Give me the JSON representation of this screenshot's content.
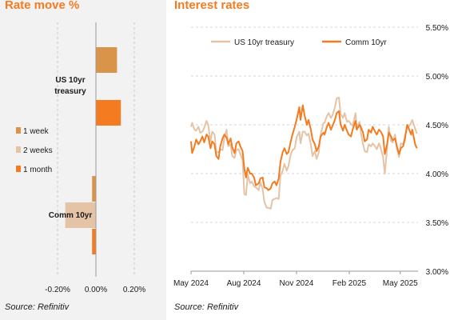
{
  "left": {
    "title": "Rate move %",
    "source": "Source: Refinitiv"
  },
  "right": {
    "title": "Interest rates",
    "source": "Source: Refinitiv"
  },
  "chart_data": [
    {
      "type": "bar",
      "orientation": "horizontal",
      "categories": [
        "US 10yr treasury",
        "Comm 10yr"
      ],
      "category_labels": [
        [
          "US 10yr",
          "treasury"
        ],
        [
          "Comm 10yr"
        ]
      ],
      "series": [
        {
          "name": "1 week",
          "color": "#d9944a",
          "values": [
            0.11,
            -0.02
          ]
        },
        {
          "name": "2 weeks",
          "color": "#e5c3a6",
          "values": [
            0.0,
            -0.16
          ]
        },
        {
          "name": "1 month",
          "color": "#f47b20",
          "values": [
            0.13,
            -0.02
          ]
        }
      ],
      "x_ticks": [
        "-0.20%",
        "0.00%",
        "0.20%"
      ],
      "x_tick_values": [
        -0.2,
        0.0,
        0.2
      ],
      "xlim": [
        -0.26,
        0.25
      ],
      "grid": "vertical dashed"
    },
    {
      "type": "line",
      "y_ticks": [
        "3.00%",
        "3.50%",
        "4.00%",
        "4.50%",
        "5.00%",
        "5.50%"
      ],
      "y_tick_values": [
        3.0,
        3.5,
        4.0,
        4.5,
        5.0,
        5.5
      ],
      "ylim": [
        3.0,
        5.5
      ],
      "x_ticks": [
        "May 2024",
        "Aug 2024",
        "Nov 2024",
        "Feb 2025",
        "May 2025"
      ],
      "x_tick_dates": [
        "2024-05-01",
        "2024-08-01",
        "2024-11-01",
        "2025-02-01",
        "2025-05-01"
      ],
      "x_start": "2024-05-01",
      "x_end": "2025-06-01",
      "grid": "horizontal dashed",
      "legend": "top-center",
      "series": [
        {
          "name": "US 10yr treasury",
          "color": "#e5c3a6",
          "points": [
            [
              "2024-05-01",
              4.48
            ],
            [
              "2024-05-03",
              4.52
            ],
            [
              "2024-05-07",
              4.45
            ],
            [
              "2024-05-10",
              4.44
            ],
            [
              "2024-05-14",
              4.48
            ],
            [
              "2024-05-17",
              4.42
            ],
            [
              "2024-05-21",
              4.43
            ],
            [
              "2024-05-24",
              4.47
            ],
            [
              "2024-05-28",
              4.54
            ],
            [
              "2024-05-31",
              4.5
            ],
            [
              "2024-06-04",
              4.33
            ],
            [
              "2024-06-07",
              4.43
            ],
            [
              "2024-06-11",
              4.4
            ],
            [
              "2024-06-14",
              4.22
            ],
            [
              "2024-06-18",
              4.22
            ],
            [
              "2024-06-21",
              4.25
            ],
            [
              "2024-06-25",
              4.24
            ],
            [
              "2024-06-28",
              4.36
            ],
            [
              "2024-07-02",
              4.45
            ],
            [
              "2024-07-05",
              4.28
            ],
            [
              "2024-07-09",
              4.3
            ],
            [
              "2024-07-12",
              4.18
            ],
            [
              "2024-07-16",
              4.16
            ],
            [
              "2024-07-19",
              4.24
            ],
            [
              "2024-07-23",
              4.25
            ],
            [
              "2024-07-26",
              4.2
            ],
            [
              "2024-07-30",
              4.14
            ],
            [
              "2024-08-02",
              3.79
            ],
            [
              "2024-08-05",
              3.78
            ],
            [
              "2024-08-08",
              3.99
            ],
            [
              "2024-08-12",
              3.9
            ],
            [
              "2024-08-15",
              3.92
            ],
            [
              "2024-08-19",
              3.87
            ],
            [
              "2024-08-22",
              3.86
            ],
            [
              "2024-08-27",
              3.83
            ],
            [
              "2024-08-30",
              3.91
            ],
            [
              "2024-09-03",
              3.84
            ],
            [
              "2024-09-06",
              3.71
            ],
            [
              "2024-09-10",
              3.65
            ],
            [
              "2024-09-13",
              3.65
            ],
            [
              "2024-09-17",
              3.64
            ],
            [
              "2024-09-20",
              3.73
            ],
            [
              "2024-09-24",
              3.74
            ],
            [
              "2024-09-27",
              3.75
            ],
            [
              "2024-10-01",
              3.74
            ],
            [
              "2024-10-04",
              3.98
            ],
            [
              "2024-10-08",
              4.03
            ],
            [
              "2024-10-11",
              4.1
            ],
            [
              "2024-10-15",
              4.03
            ],
            [
              "2024-10-18",
              4.08
            ],
            [
              "2024-10-22",
              4.2
            ],
            [
              "2024-10-25",
              4.24
            ],
            [
              "2024-10-29",
              4.26
            ],
            [
              "2024-11-01",
              4.37
            ],
            [
              "2024-11-06",
              4.43
            ],
            [
              "2024-11-08",
              4.31
            ],
            [
              "2024-11-12",
              4.43
            ],
            [
              "2024-11-15",
              4.43
            ],
            [
              "2024-11-19",
              4.39
            ],
            [
              "2024-11-22",
              4.41
            ],
            [
              "2024-11-26",
              4.3
            ],
            [
              "2024-11-29",
              4.18
            ],
            [
              "2024-12-03",
              4.23
            ],
            [
              "2024-12-06",
              4.15
            ],
            [
              "2024-12-10",
              4.22
            ],
            [
              "2024-12-13",
              4.4
            ],
            [
              "2024-12-18",
              4.52
            ],
            [
              "2024-12-20",
              4.52
            ],
            [
              "2024-12-24",
              4.59
            ],
            [
              "2024-12-27",
              4.62
            ],
            [
              "2024-12-31",
              4.57
            ],
            [
              "2025-01-03",
              4.6
            ],
            [
              "2025-01-07",
              4.68
            ],
            [
              "2025-01-10",
              4.77
            ],
            [
              "2025-01-14",
              4.78
            ],
            [
              "2025-01-17",
              4.61
            ],
            [
              "2025-01-21",
              4.57
            ],
            [
              "2025-01-24",
              4.62
            ],
            [
              "2025-01-28",
              4.53
            ],
            [
              "2025-01-31",
              4.54
            ],
            [
              "2025-02-04",
              4.51
            ],
            [
              "2025-02-07",
              4.49
            ],
            [
              "2025-02-12",
              4.62
            ],
            [
              "2025-02-14",
              4.47
            ],
            [
              "2025-02-19",
              4.53
            ],
            [
              "2025-02-21",
              4.43
            ],
            [
              "2025-02-25",
              4.3
            ],
            [
              "2025-02-28",
              4.23
            ],
            [
              "2025-03-04",
              4.22
            ],
            [
              "2025-03-07",
              4.3
            ],
            [
              "2025-03-11",
              4.28
            ],
            [
              "2025-03-14",
              4.31
            ],
            [
              "2025-03-18",
              4.28
            ],
            [
              "2025-03-21",
              4.25
            ],
            [
              "2025-03-25",
              4.31
            ],
            [
              "2025-03-28",
              4.26
            ],
            [
              "2025-04-01",
              4.17
            ],
            [
              "2025-04-04",
              4.0
            ],
            [
              "2025-04-08",
              4.26
            ],
            [
              "2025-04-11",
              4.48
            ],
            [
              "2025-04-15",
              4.33
            ],
            [
              "2025-04-18",
              4.32
            ],
            [
              "2025-04-22",
              4.4
            ],
            [
              "2025-04-25",
              4.26
            ],
            [
              "2025-04-29",
              4.17
            ],
            [
              "2025-05-02",
              4.31
            ],
            [
              "2025-05-06",
              4.3
            ],
            [
              "2025-05-09",
              4.38
            ],
            [
              "2025-05-13",
              4.47
            ],
            [
              "2025-05-16",
              4.48
            ],
            [
              "2025-05-20",
              4.52
            ],
            [
              "2025-05-22",
              4.55
            ],
            [
              "2025-05-27",
              4.46
            ],
            [
              "2025-05-30",
              4.41
            ]
          ]
        },
        {
          "name": "Comm 10yr",
          "color": "#f47b20",
          "points": [
            [
              "2024-05-01",
              4.33
            ],
            [
              "2024-05-03",
              4.21
            ],
            [
              "2024-05-07",
              4.28
            ],
            [
              "2024-05-10",
              4.35
            ],
            [
              "2024-05-14",
              4.3
            ],
            [
              "2024-05-17",
              4.33
            ],
            [
              "2024-05-21",
              4.38
            ],
            [
              "2024-05-24",
              4.32
            ],
            [
              "2024-05-28",
              4.4
            ],
            [
              "2024-05-31",
              4.38
            ],
            [
              "2024-06-04",
              4.26
            ],
            [
              "2024-06-07",
              4.33
            ],
            [
              "2024-06-11",
              4.3
            ],
            [
              "2024-06-14",
              4.18
            ],
            [
              "2024-06-18",
              4.15
            ],
            [
              "2024-06-21",
              4.28
            ],
            [
              "2024-06-25",
              4.36
            ],
            [
              "2024-06-28",
              4.4
            ],
            [
              "2024-07-02",
              4.37
            ],
            [
              "2024-07-05",
              4.3
            ],
            [
              "2024-07-09",
              4.36
            ],
            [
              "2024-07-12",
              4.27
            ],
            [
              "2024-07-16",
              4.21
            ],
            [
              "2024-07-19",
              4.31
            ],
            [
              "2024-07-23",
              4.33
            ],
            [
              "2024-07-26",
              4.28
            ],
            [
              "2024-07-30",
              4.23
            ],
            [
              "2024-08-02",
              4.05
            ],
            [
              "2024-08-05",
              3.96
            ],
            [
              "2024-08-08",
              4.06
            ],
            [
              "2024-08-12",
              4.0
            ],
            [
              "2024-08-15",
              4.0
            ],
            [
              "2024-08-19",
              3.96
            ],
            [
              "2024-08-22",
              3.88
            ],
            [
              "2024-08-27",
              3.9
            ],
            [
              "2024-08-30",
              3.95
            ],
            [
              "2024-09-03",
              3.96
            ],
            [
              "2024-09-06",
              3.86
            ],
            [
              "2024-09-10",
              3.85
            ],
            [
              "2024-09-13",
              3.83
            ],
            [
              "2024-09-17",
              3.85
            ],
            [
              "2024-09-20",
              3.9
            ],
            [
              "2024-09-24",
              3.92
            ],
            [
              "2024-09-27",
              3.88
            ],
            [
              "2024-10-01",
              3.95
            ],
            [
              "2024-10-04",
              4.12
            ],
            [
              "2024-10-08",
              4.22
            ],
            [
              "2024-10-11",
              4.26
            ],
            [
              "2024-10-15",
              4.2
            ],
            [
              "2024-10-18",
              4.22
            ],
            [
              "2024-10-22",
              4.33
            ],
            [
              "2024-10-25",
              4.4
            ],
            [
              "2024-10-29",
              4.48
            ],
            [
              "2024-11-01",
              4.55
            ],
            [
              "2024-11-06",
              4.68
            ],
            [
              "2024-11-08",
              4.55
            ],
            [
              "2024-11-12",
              4.7
            ],
            [
              "2024-11-15",
              4.6
            ],
            [
              "2024-11-19",
              4.5
            ],
            [
              "2024-11-22",
              4.55
            ],
            [
              "2024-11-26",
              4.45
            ],
            [
              "2024-11-29",
              4.35
            ],
            [
              "2024-12-03",
              4.3
            ],
            [
              "2024-12-06",
              4.23
            ],
            [
              "2024-12-10",
              4.28
            ],
            [
              "2024-12-13",
              4.38
            ],
            [
              "2024-12-18",
              4.42
            ],
            [
              "2024-12-20",
              4.4
            ],
            [
              "2024-12-24",
              4.48
            ],
            [
              "2024-12-27",
              4.52
            ],
            [
              "2024-12-31",
              4.45
            ],
            [
              "2025-01-03",
              4.49
            ],
            [
              "2025-01-07",
              4.55
            ],
            [
              "2025-01-10",
              4.62
            ],
            [
              "2025-01-14",
              4.64
            ],
            [
              "2025-01-17",
              4.5
            ],
            [
              "2025-01-21",
              4.44
            ],
            [
              "2025-01-24",
              4.5
            ],
            [
              "2025-01-28",
              4.44
            ],
            [
              "2025-01-31",
              4.4
            ],
            [
              "2025-02-04",
              4.38
            ],
            [
              "2025-02-07",
              4.45
            ],
            [
              "2025-02-12",
              4.54
            ],
            [
              "2025-02-14",
              4.45
            ],
            [
              "2025-02-19",
              4.5
            ],
            [
              "2025-02-21",
              4.48
            ],
            [
              "2025-02-25",
              4.42
            ],
            [
              "2025-02-28",
              4.33
            ],
            [
              "2025-03-04",
              4.35
            ],
            [
              "2025-03-07",
              4.45
            ],
            [
              "2025-03-11",
              4.42
            ],
            [
              "2025-03-14",
              4.48
            ],
            [
              "2025-03-18",
              4.43
            ],
            [
              "2025-03-21",
              4.4
            ],
            [
              "2025-03-25",
              4.45
            ],
            [
              "2025-03-28",
              4.43
            ],
            [
              "2025-04-01",
              4.38
            ],
            [
              "2025-04-04",
              4.2
            ],
            [
              "2025-04-08",
              4.3
            ],
            [
              "2025-04-11",
              4.42
            ],
            [
              "2025-04-15",
              4.38
            ],
            [
              "2025-04-18",
              4.34
            ],
            [
              "2025-04-22",
              4.36
            ],
            [
              "2025-04-25",
              4.28
            ],
            [
              "2025-04-29",
              4.2
            ],
            [
              "2025-05-02",
              4.26
            ],
            [
              "2025-05-06",
              4.28
            ],
            [
              "2025-05-09",
              4.35
            ],
            [
              "2025-05-13",
              4.5
            ],
            [
              "2025-05-16",
              4.46
            ],
            [
              "2025-05-20",
              4.4
            ],
            [
              "2025-05-22",
              4.45
            ],
            [
              "2025-05-27",
              4.3
            ],
            [
              "2025-05-30",
              4.26
            ]
          ]
        }
      ]
    }
  ]
}
